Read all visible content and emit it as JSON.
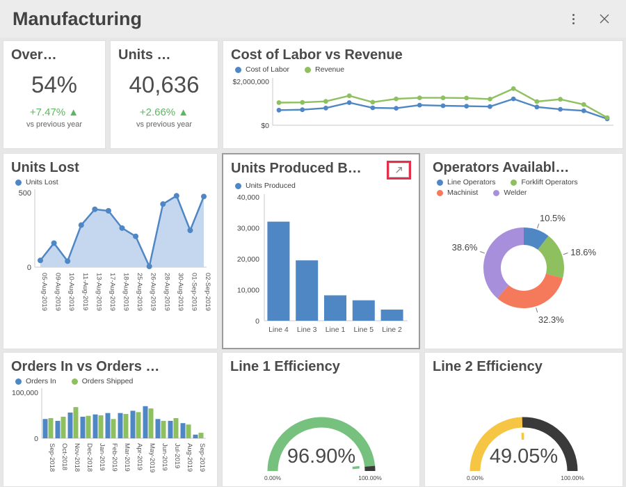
{
  "header": {
    "title": "Manufacturing"
  },
  "colors": {
    "blue": "#4f86c4",
    "green": "#8fc05f",
    "orange": "#f5795b",
    "purple": "#a88fdb",
    "area_fill": "#c5d7ee",
    "gauge_green": "#76c17d",
    "gauge_yellow": "#f6c544",
    "gauge_rest": "#3a3a3a",
    "kpi_delta_green": "#5cb860",
    "highlight_red": "#e5304c",
    "axis": "#c9c9c9",
    "text": "#555555"
  },
  "chart_data": [
    {
      "id": "overall-kpi",
      "type": "kpi",
      "title": "Over…",
      "value": "54%",
      "delta": "+7.47% ▲",
      "caption": "vs previous year"
    },
    {
      "id": "units-kpi",
      "type": "kpi",
      "title": "Units …",
      "value": "40,636",
      "delta": "+2.66% ▲",
      "caption": "vs previous year"
    },
    {
      "id": "cost-labor-revenue",
      "type": "line",
      "title": "Cost of Labor vs Revenue",
      "ylim": [
        0,
        2000000
      ],
      "y_tick_labels": [
        "$2,000,000",
        "$0"
      ],
      "grid": false,
      "legend_position": "top",
      "series": [
        {
          "name": "Cost of Labor",
          "color": "#4f86c4",
          "values": [
            590000,
            610000,
            690000,
            950000,
            700000,
            680000,
            830000,
            800000,
            780000,
            760000,
            1130000,
            740000,
            630000,
            560000,
            170000
          ]
        },
        {
          "name": "Revenue",
          "color": "#8fc05f",
          "values": [
            950000,
            960000,
            1010000,
            1280000,
            970000,
            1130000,
            1180000,
            1180000,
            1170000,
            1120000,
            1620000,
            1000000,
            1110000,
            860000,
            230000
          ]
        }
      ]
    },
    {
      "id": "units-lost",
      "type": "area",
      "title": "Units Lost",
      "legend": [
        "Units Lost"
      ],
      "color": "#4f86c4",
      "fill": "#c5d7ee",
      "ylim": [
        0,
        500
      ],
      "y_tick_labels": [
        "500",
        "0"
      ],
      "categories": [
        "05-Aug-2019",
        "09-Aug-2019",
        "10-Aug-2019",
        "11-Aug-2019",
        "13-Aug-2019",
        "17-Aug-2019",
        "18-Aug-2019",
        "25-Aug-2019",
        "26-Aug-2019",
        "28-Aug-2019",
        "30-Aug-2019",
        "01-Sep-2019",
        "02-Sep-2019"
      ],
      "values": [
        45,
        160,
        40,
        280,
        385,
        375,
        260,
        205,
        5,
        420,
        475,
        245,
        470
      ]
    },
    {
      "id": "units-produced",
      "type": "bar",
      "title": "Units Produced B…",
      "legend": [
        "Units Produced"
      ],
      "color": "#4f86c4",
      "ylim": [
        0,
        40000
      ],
      "y_ticks": [
        0,
        10000,
        20000,
        30000,
        40000
      ],
      "y_tick_labels": [
        "0",
        "10,000",
        "20,000",
        "30,000",
        "40,000"
      ],
      "categories": [
        "Line 4",
        "Line 3",
        "Line 1",
        "Line 5",
        "Line 2"
      ],
      "values": [
        32000,
        19500,
        8200,
        6600,
        3600
      ],
      "expand_icon": "maximize-arrow"
    },
    {
      "id": "operators-available",
      "type": "pie",
      "title": "Operators Availabl…",
      "donut": true,
      "slices": [
        {
          "label": "Line Operators",
          "value": 10.5,
          "display": "10.5%",
          "color": "#4f86c4"
        },
        {
          "label": "Forklift Operators",
          "value": 18.6,
          "display": "18.6%",
          "color": "#8fc05f"
        },
        {
          "label": "Machinist",
          "value": 32.3,
          "display": "32.3%",
          "color": "#f5795b"
        },
        {
          "label": "Welder",
          "value": 38.6,
          "display": "38.6%",
          "color": "#a88fdb"
        }
      ]
    },
    {
      "id": "orders-in-vs-shipped",
      "type": "bar",
      "title": "Orders In vs Orders …",
      "ylim": [
        0,
        100000
      ],
      "y_tick_labels": [
        "100,000",
        "0"
      ],
      "categories": [
        "Sep-2018",
        "Oct-2018",
        "Nov-2018",
        "Dec-2018",
        "Jan-2019",
        "Feb-2019",
        "Mar-2019",
        "Apr-2019",
        "May-2019",
        "Jun-2019",
        "Jul-2019",
        "Aug-2019",
        "Sep-2019"
      ],
      "series": [
        {
          "name": "Orders In",
          "color": "#4f86c4",
          "values": [
            42000,
            38000,
            56000,
            47000,
            52000,
            55000,
            55000,
            60000,
            70000,
            42000,
            38000,
            33000,
            8000
          ]
        },
        {
          "name": "Orders Shipped",
          "color": "#8fc05f",
          "values": [
            44000,
            47000,
            68000,
            49000,
            50000,
            42000,
            53000,
            57000,
            65000,
            38000,
            44000,
            30000,
            12000
          ]
        }
      ]
    },
    {
      "id": "line1-efficiency",
      "type": "gauge",
      "title": "Line 1 Efficiency",
      "value": 96.9,
      "display": "96.90%",
      "min_label": "0.00%",
      "max_label": "100.00%",
      "color": "#76c17d",
      "rest_color": "#3a3a3a"
    },
    {
      "id": "line2-efficiency",
      "type": "gauge",
      "title": "Line 2 Efficiency",
      "value": 49.05,
      "display": "49.05%",
      "min_label": "0.00%",
      "max_label": "100.00%",
      "color": "#f6c544",
      "rest_color": "#3a3a3a"
    }
  ]
}
